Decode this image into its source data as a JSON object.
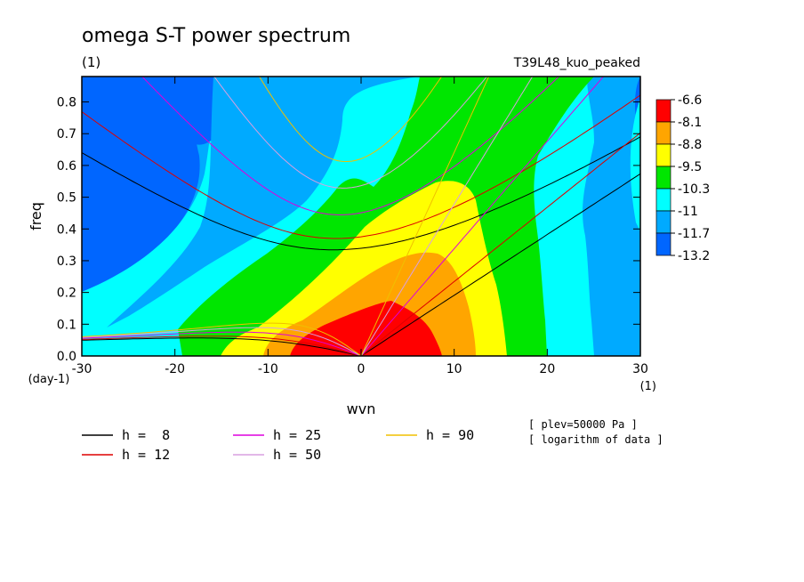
{
  "chart_data": {
    "type": "heatmap",
    "title": "omega S-T power spectrum",
    "subtitle_left": "(1)",
    "subtitle_right": "T39L48_kuo_peaked",
    "xlabel": "wvn",
    "ylabel": "freq",
    "x_unit": "(1)",
    "y_unit": "(day-1)",
    "xlim": [
      -30,
      30
    ],
    "ylim": [
      0,
      0.88
    ],
    "x_ticks": [
      -30,
      -20,
      -10,
      0,
      10,
      20,
      30
    ],
    "x_tick_labels": [
      "-30",
      "-20",
      "-10",
      "0",
      "10",
      "20",
      "30"
    ],
    "y_ticks": [
      0,
      0.1,
      0.2,
      0.3,
      0.4,
      0.5,
      0.6,
      0.7,
      0.8
    ],
    "y_tick_labels": [
      "0.0",
      "0.1",
      "0.2",
      "0.3",
      "0.4",
      "0.5",
      "0.6",
      "0.7",
      "0.8"
    ],
    "colorbar": {
      "labels": [
        "-6.6",
        "-8.1",
        "-8.8",
        "-9.5",
        "-10.3",
        "-11",
        "-11.7",
        "-13.2"
      ],
      "colors": [
        "#ff0000",
        "#ffa500",
        "#ffff00",
        "#00e600",
        "#00ffff",
        "#00aaff",
        "#0066ff"
      ]
    },
    "dispersion_curves": [
      {
        "h": 8,
        "label": "h =  8",
        "color": "#000000"
      },
      {
        "h": 12,
        "label": "h = 12",
        "color": "#dd0000"
      },
      {
        "h": 25,
        "label": "h = 25",
        "color": "#dd00dd"
      },
      {
        "h": 50,
        "label": "h = 50",
        "color": "#d8a0e0"
      },
      {
        "h": 90,
        "label": "h = 90",
        "color": "#f0c000"
      }
    ],
    "notes": [
      "[ plev=50000 Pa ]",
      "[ logarithm of data ]"
    ],
    "grid": false
  }
}
